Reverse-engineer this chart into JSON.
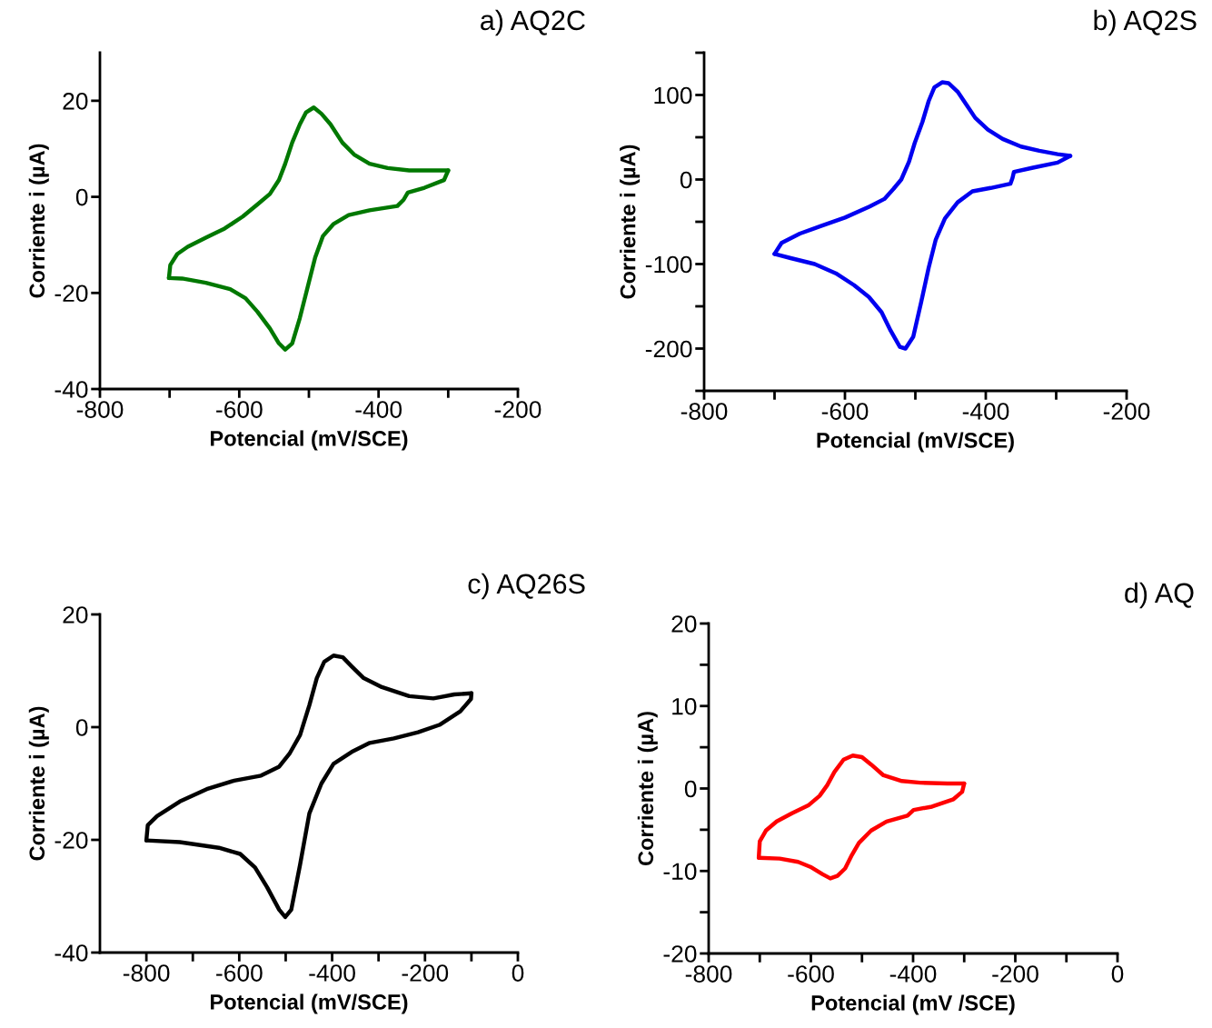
{
  "chart_data": [
    {
      "type": "line",
      "title": "a) AQ2C",
      "xlabel": "Potencial (mV/SCE)",
      "ylabel": "Corriente i (µA)",
      "xlim": [
        -800,
        -200
      ],
      "ylim": [
        -40,
        30
      ],
      "xticks": [
        -800,
        {
          "value": -700,
          "label": null
        },
        -600,
        {
          "value": -500,
          "label": null
        },
        -400,
        {
          "value": -300,
          "label": null
        },
        -200
      ],
      "yticks": [
        -40,
        -20,
        0,
        20
      ],
      "marker": "none",
      "line_style": "solid",
      "series": [
        {
          "color": "#007800",
          "x": [
            -300,
            -356,
            -387,
            -413,
            -435,
            -452,
            -469,
            -482,
            -493,
            -504,
            -513,
            -524,
            -534,
            -543,
            -556,
            -574,
            -595,
            -621,
            -648,
            -674,
            -689,
            -699,
            -701
          ],
          "values": [
            5.5,
            5.5,
            6.0,
            6.9,
            8.8,
            11.3,
            15.1,
            17.3,
            18.6,
            17.6,
            15.1,
            11.3,
            6.9,
            3.5,
            0.6,
            -1.6,
            -4.1,
            -6.6,
            -8.5,
            -10.4,
            -11.9,
            -14.2,
            -16.9
          ]
        },
        {
          "color": "#007800",
          "x": [
            -701,
            -682,
            -648,
            -613,
            -591,
            -574,
            -556,
            -543,
            -534,
            -524,
            -513,
            -502,
            -491,
            -480,
            -465,
            -443,
            -413,
            -373,
            -364,
            -358,
            -334,
            -306,
            -300
          ],
          "values": [
            -16.9,
            -17.0,
            -17.9,
            -19.2,
            -21.1,
            -23.9,
            -27.4,
            -30.5,
            -31.8,
            -30.5,
            -25.2,
            -18.9,
            -12.6,
            -8.2,
            -5.7,
            -3.8,
            -2.8,
            -1.9,
            -0.6,
            0.9,
            1.9,
            3.5,
            5.5
          ]
        }
      ]
    },
    {
      "type": "line",
      "title": "b) AQ2S",
      "xlabel": "Potencial (mV/SCE)",
      "ylabel": "Corriente i (µA)",
      "xlim": [
        -800,
        -200
      ],
      "ylim": [
        -250,
        150
      ],
      "xticks": [
        -800,
        {
          "value": -700,
          "label": null
        },
        -600,
        {
          "value": -500,
          "label": null
        },
        -400,
        {
          "value": -300,
          "label": null
        },
        -200
      ],
      "yticks": [
        {
          "value": -250,
          "label": null
        },
        -200,
        {
          "value": -150,
          "label": null
        },
        -100,
        {
          "value": -50,
          "label": null
        },
        0,
        {
          "value": 50,
          "label": null
        },
        100,
        {
          "value": 150,
          "label": null
        }
      ],
      "marker": "none",
      "line_style": "solid",
      "series": [
        {
          "color": "#0000f0",
          "x": [
            -280,
            -298,
            -324,
            -350,
            -376,
            -397,
            -415,
            -427,
            -440,
            -453,
            -462,
            -473,
            -481,
            -490,
            -501,
            -509,
            -520,
            -531,
            -544,
            -565,
            -600,
            -634,
            -664,
            -690,
            -700
          ],
          "values": [
            28,
            30,
            34,
            39,
            48,
            59,
            73,
            88,
            104,
            114,
            115,
            109,
            93,
            68,
            43,
            21,
            0,
            -11,
            -23,
            -32,
            -45,
            -55,
            -64,
            -75,
            -88
          ]
        },
        {
          "color": "#0000f0",
          "x": [
            -700,
            -677,
            -643,
            -613,
            -587,
            -566,
            -548,
            -535,
            -522,
            -514,
            -503,
            -492,
            -481,
            -471,
            -458,
            -440,
            -419,
            -393,
            -365,
            -362,
            -360,
            -333,
            -298,
            -280
          ],
          "values": [
            -88,
            -93,
            -100,
            -111,
            -125,
            -139,
            -157,
            -179,
            -198,
            -200,
            -186,
            -146,
            -104,
            -71,
            -46,
            -27,
            -14,
            -10,
            -5,
            2,
            9,
            14,
            20,
            28
          ]
        }
      ]
    },
    {
      "type": "line",
      "title": "c) AQ26S",
      "xlabel": "Potencial (mV/SCE)",
      "ylabel": "Corriente i (µA)",
      "xlim": [
        -900,
        0
      ],
      "ylim": [
        -40,
        20
      ],
      "xticks": [
        -800,
        {
          "value": -700,
          "label": null
        },
        -600,
        {
          "value": -500,
          "label": null
        },
        -400,
        {
          "value": -300,
          "label": null
        },
        -200,
        {
          "value": -100,
          "label": null
        },
        0
      ],
      "yticks": [
        -40,
        -20,
        0,
        20
      ],
      "marker": "none",
      "line_style": "solid",
      "series": [
        {
          "color": "#000000",
          "x": [
            -100,
            -137,
            -182,
            -234,
            -293,
            -332,
            -358,
            -377,
            -397,
            -417,
            -433,
            -449,
            -469,
            -491,
            -514,
            -553,
            -611,
            -670,
            -728,
            -777,
            -797,
            -800
          ],
          "values": [
            6.0,
            5.8,
            5.1,
            5.5,
            7.1,
            8.7,
            10.8,
            12.4,
            12.7,
            11.6,
            8.7,
            3.9,
            -1.4,
            -4.6,
            -7.0,
            -8.6,
            -9.5,
            -11.0,
            -13.2,
            -15.8,
            -17.4,
            -20.1
          ]
        },
        {
          "color": "#000000",
          "x": [
            -800,
            -728,
            -644,
            -598,
            -566,
            -540,
            -514,
            -501,
            -488,
            -469,
            -449,
            -423,
            -397,
            -358,
            -319,
            -267,
            -215,
            -169,
            -124,
            -101,
            -100
          ],
          "values": [
            -20.1,
            -20.4,
            -21.4,
            -22.5,
            -24.9,
            -28.4,
            -32.4,
            -33.7,
            -32.4,
            -24.4,
            -15.3,
            -10.0,
            -6.5,
            -4.4,
            -2.8,
            -2.0,
            -0.9,
            0.4,
            2.8,
            5.0,
            6.0
          ]
        }
      ]
    },
    {
      "type": "line",
      "title": "d) AQ",
      "xlabel": "Potencial (mV /SCE)",
      "ylabel": "Corriente i (µA)",
      "xlim": [
        -800,
        0
      ],
      "ylim": [
        -20,
        20
      ],
      "xticks": [
        -800,
        {
          "value": -700,
          "label": null
        },
        -600,
        {
          "value": -500,
          "label": null
        },
        -400,
        {
          "value": -300,
          "label": null
        },
        -200,
        {
          "value": -100,
          "label": null
        },
        0
      ],
      "yticks": [
        -20,
        {
          "value": -15,
          "label": null
        },
        -10,
        {
          "value": -5,
          "label": null
        },
        0,
        {
          "value": 5,
          "label": null
        },
        10,
        {
          "value": 15,
          "label": null
        },
        20
      ],
      "marker": "none",
      "line_style": "solid",
      "series": [
        {
          "color": "#ff0000",
          "x": [
            -300,
            -333,
            -386,
            -422,
            -458,
            -482,
            -500,
            -518,
            -536,
            -554,
            -568,
            -583,
            -604,
            -637,
            -667,
            -688,
            -700,
            -702
          ],
          "values": [
            0.6,
            0.6,
            0.7,
            0.9,
            1.6,
            2.9,
            3.8,
            4.0,
            3.5,
            2.0,
            0.4,
            -0.9,
            -2.0,
            -3.0,
            -4.0,
            -5.1,
            -6.4,
            -8.4
          ]
        },
        {
          "color": "#ff0000",
          "x": [
            -702,
            -661,
            -625,
            -601,
            -577,
            -562,
            -548,
            -533,
            -521,
            -506,
            -482,
            -452,
            -411,
            -399,
            -363,
            -321,
            -304,
            -300
          ],
          "values": [
            -8.4,
            -8.5,
            -8.9,
            -9.5,
            -10.4,
            -10.9,
            -10.6,
            -9.7,
            -8.2,
            -6.6,
            -5.1,
            -4.0,
            -3.3,
            -2.6,
            -2.2,
            -1.3,
            -0.4,
            0.6
          ]
        }
      ]
    }
  ]
}
